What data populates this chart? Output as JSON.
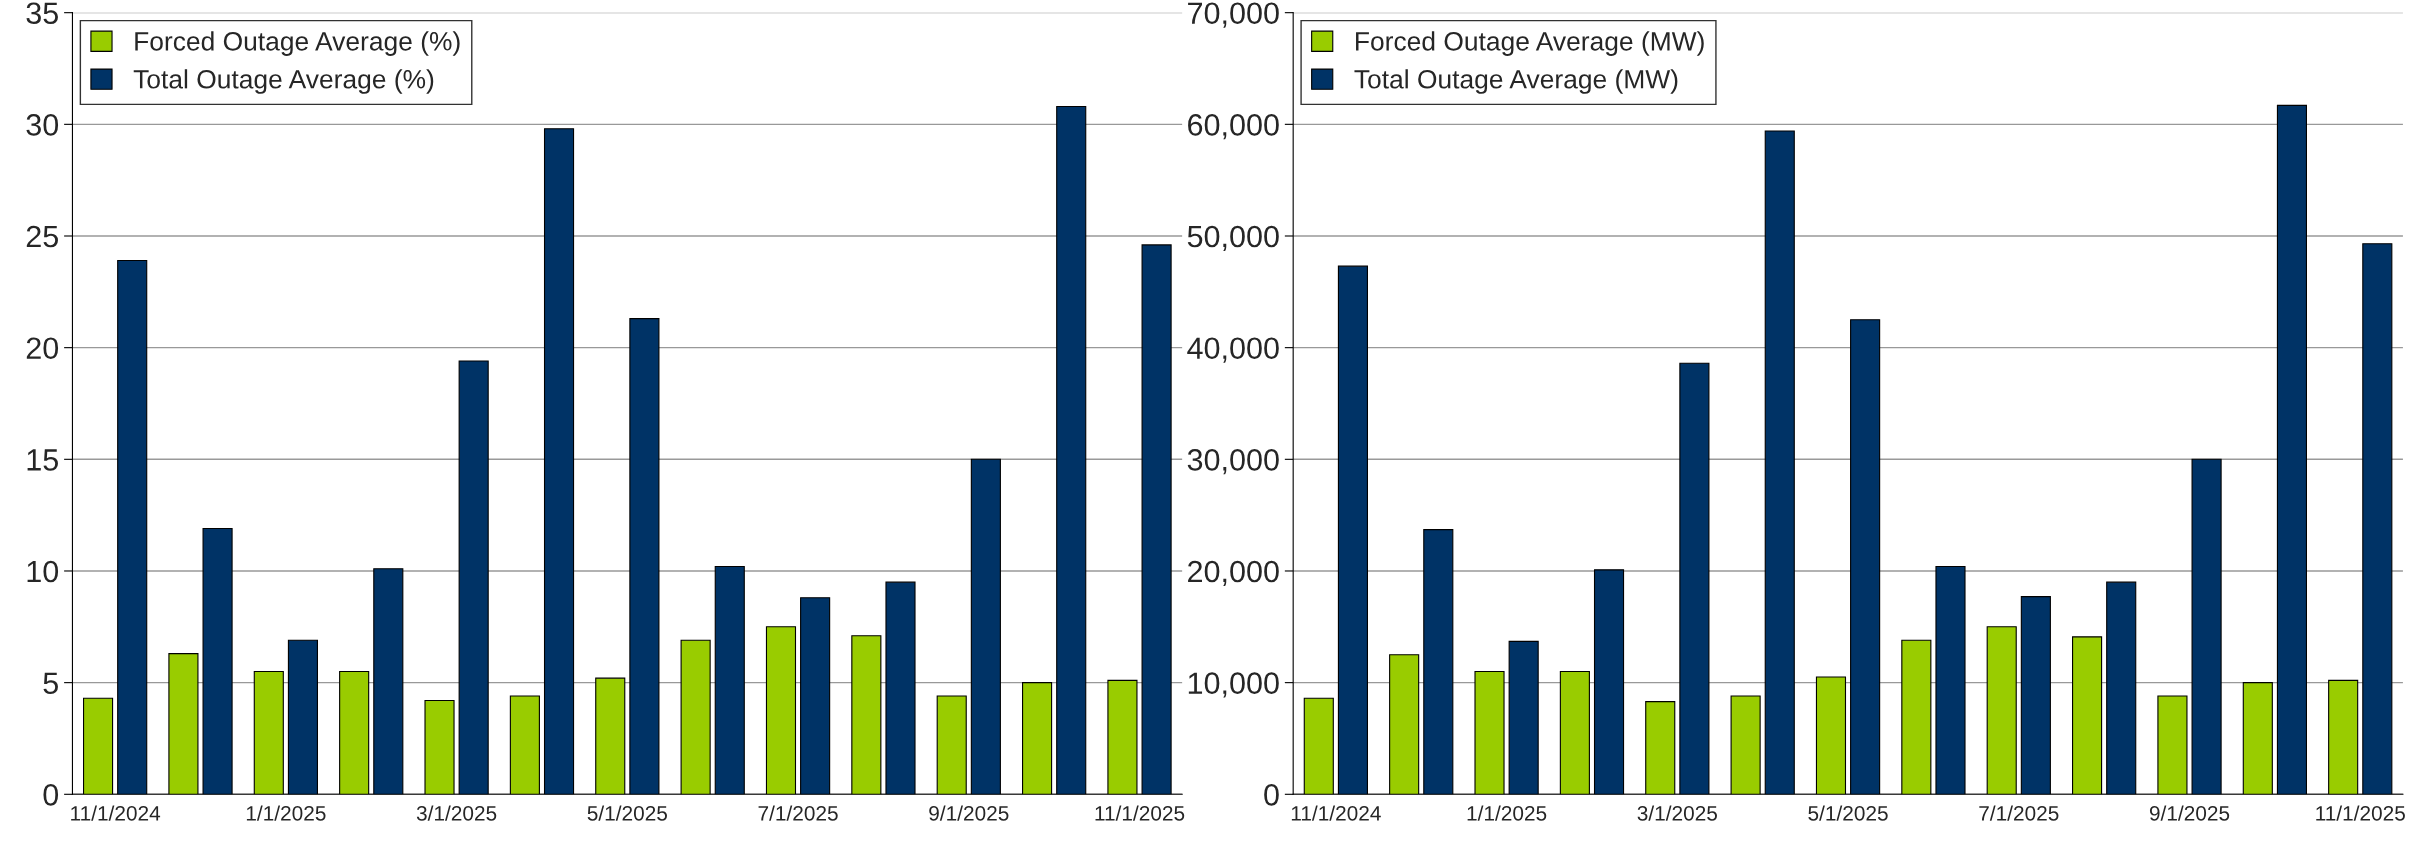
{
  "chart_data": [
    {
      "type": "bar",
      "categories": [
        "11/1/2024",
        null,
        "1/1/2025",
        null,
        "3/1/2025",
        null,
        "5/1/2025",
        null,
        "7/1/2025",
        null,
        "9/1/2025",
        null,
        "11/1/2025"
      ],
      "series": [
        {
          "name": "Forced Outage Average (%)",
          "color": "#99cc00",
          "values": [
            4.3,
            6.3,
            5.5,
            5.5,
            4.2,
            4.4,
            5.2,
            6.9,
            7.5,
            7.1,
            4.4,
            5.0,
            5.1
          ]
        },
        {
          "name": "Total Outage Average (%)",
          "color": "#003366",
          "values": [
            23.9,
            11.9,
            6.9,
            10.1,
            19.4,
            29.8,
            21.3,
            10.2,
            8.8,
            9.5,
            15.0,
            30.8,
            24.6
          ]
        }
      ],
      "ylim": [
        0,
        35
      ],
      "yticks": [
        0,
        5,
        10,
        15,
        20,
        25,
        30,
        35
      ],
      "grid": "y",
      "legend": "top left"
    },
    {
      "type": "bar",
      "categories": [
        "11/1/2024",
        null,
        "1/1/2025",
        null,
        "3/1/2025",
        null,
        "5/1/2025",
        null,
        "7/1/2025",
        null,
        "9/1/2025",
        null,
        "11/1/2025"
      ],
      "series": [
        {
          "name": "Forced Outage Average (MW)",
          "color": "#99cc00",
          "values": [
            8600,
            12500,
            11000,
            11000,
            8300,
            8800,
            10500,
            13800,
            15000,
            14100,
            8800,
            10000,
            10200
          ]
        },
        {
          "name": "Total Outage Average (MW)",
          "color": "#003366",
          "values": [
            47300,
            23700,
            13700,
            20100,
            38600,
            59400,
            42500,
            20400,
            17700,
            19000,
            30000,
            61700,
            49300
          ]
        }
      ],
      "ylim": [
        0,
        70000
      ],
      "yticks": [
        0,
        {
          "value": 10000,
          "label": "10,000"
        },
        {
          "value": 20000,
          "label": "20,000"
        },
        {
          "value": 30000,
          "label": "30,000"
        },
        {
          "value": 40000,
          "label": "40,000"
        },
        {
          "value": 50000,
          "label": "50,000"
        },
        {
          "value": 60000,
          "label": "60,000"
        },
        {
          "value": 70000,
          "label": "70,000"
        }
      ],
      "grid": "y",
      "legend": "top left"
    }
  ]
}
